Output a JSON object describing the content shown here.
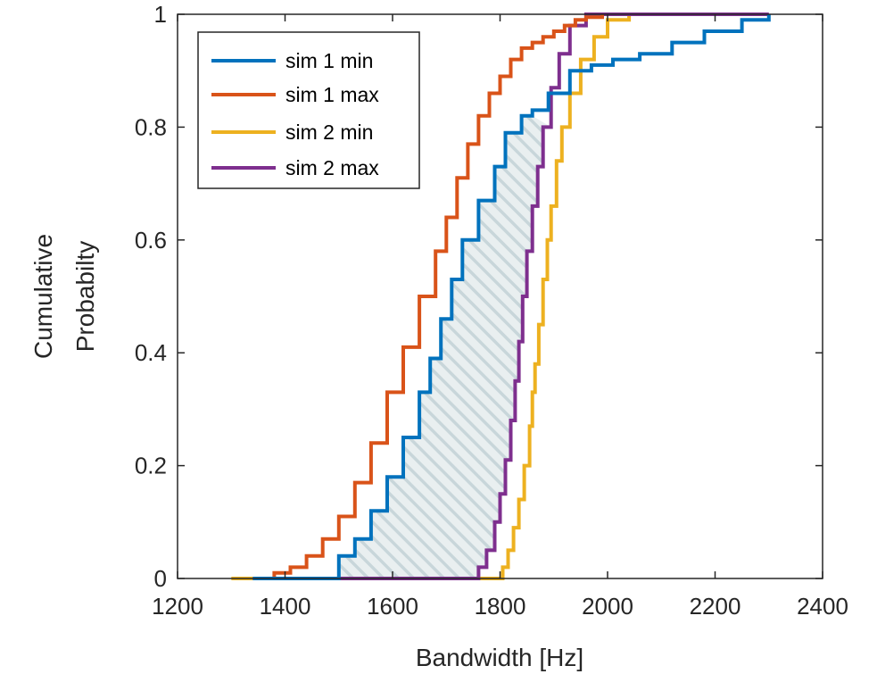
{
  "chart_data": {
    "type": "line",
    "title": "",
    "xlabel": "Bandwidth [Hz]",
    "ylabel_lines": [
      "Cumulative",
      "Probabilty"
    ],
    "xlim": [
      1200,
      2400
    ],
    "ylim": [
      0,
      1
    ],
    "xticks": [
      "1200",
      "1400",
      "1600",
      "1800",
      "2000",
      "2200",
      "2400"
    ],
    "yticks": [
      "0",
      "0.2",
      "0.4",
      "0.6",
      "0.8",
      "1"
    ],
    "grid": false,
    "legend_position": "top-left",
    "shaded_region": {
      "between": [
        "sim 1 min",
        "sim 2 max"
      ],
      "pattern": "diagonal hatch",
      "color": "#c8d6da"
    },
    "series": [
      {
        "name": "sim 1 min",
        "color": "#0072BD",
        "x": [
          1340,
          1480,
          1500,
          1530,
          1560,
          1590,
          1620,
          1650,
          1670,
          1690,
          1710,
          1730,
          1760,
          1790,
          1810,
          1840,
          1860,
          1890,
          1930,
          1970,
          2010,
          2060,
          2120,
          2180,
          2250,
          2300
        ],
        "y": [
          0,
          0,
          0.04,
          0.07,
          0.12,
          0.18,
          0.25,
          0.33,
          0.39,
          0.46,
          0.53,
          0.6,
          0.67,
          0.73,
          0.79,
          0.82,
          0.83,
          0.86,
          0.9,
          0.91,
          0.92,
          0.93,
          0.95,
          0.97,
          0.99,
          1
        ]
      },
      {
        "name": "sim 1 max",
        "color": "#D95319",
        "x": [
          1340,
          1380,
          1410,
          1440,
          1470,
          1500,
          1530,
          1560,
          1590,
          1620,
          1650,
          1680,
          1700,
          1720,
          1740,
          1760,
          1780,
          1800,
          1820,
          1840,
          1860,
          1880,
          1900,
          1920,
          1940,
          1960,
          1990
        ],
        "y": [
          0,
          0.01,
          0.02,
          0.04,
          0.07,
          0.11,
          0.17,
          0.24,
          0.33,
          0.41,
          0.5,
          0.58,
          0.64,
          0.71,
          0.77,
          0.82,
          0.86,
          0.89,
          0.92,
          0.94,
          0.95,
          0.96,
          0.97,
          0.98,
          0.99,
          0.995,
          1
        ]
      },
      {
        "name": "sim 2 min",
        "color": "#EDB120",
        "x": [
          1300,
          1790,
          1805,
          1815,
          1825,
          1835,
          1845,
          1855,
          1860,
          1865,
          1872,
          1880,
          1888,
          1895,
          1905,
          1915,
          1930,
          1950,
          1975,
          2000,
          2040
        ],
        "y": [
          0,
          0,
          0.02,
          0.05,
          0.09,
          0.14,
          0.2,
          0.27,
          0.33,
          0.38,
          0.45,
          0.53,
          0.6,
          0.66,
          0.74,
          0.8,
          0.86,
          0.92,
          0.96,
          0.99,
          1
        ]
      },
      {
        "name": "sim 2 max",
        "color": "#7E2F8E",
        "x": [
          1340,
          1740,
          1760,
          1775,
          1790,
          1800,
          1810,
          1820,
          1828,
          1835,
          1842,
          1850,
          1860,
          1870,
          1880,
          1895,
          1910,
          1930,
          1960,
          2300
        ],
        "y": [
          0,
          0,
          0.02,
          0.05,
          0.1,
          0.15,
          0.21,
          0.28,
          0.35,
          0.42,
          0.5,
          0.58,
          0.66,
          0.73,
          0.8,
          0.87,
          0.93,
          0.98,
          1,
          1
        ]
      }
    ]
  }
}
